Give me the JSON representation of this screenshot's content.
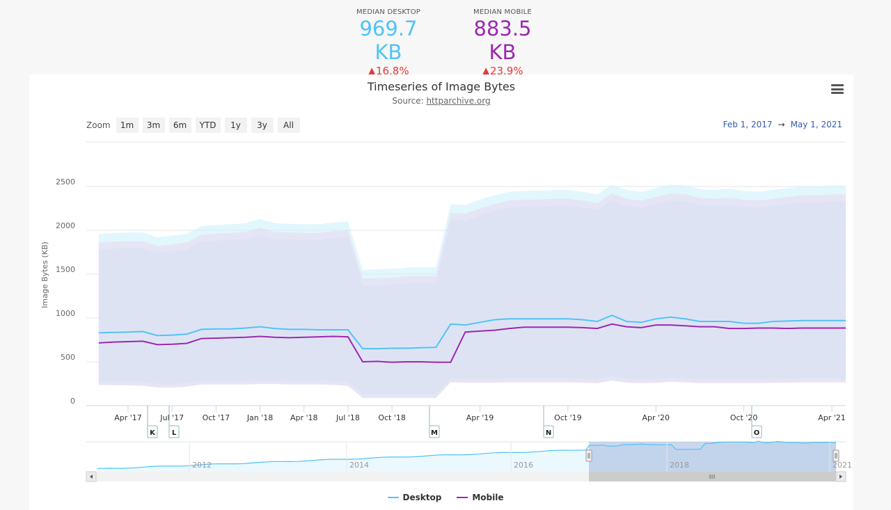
{
  "stats": {
    "desktop": {
      "label": "MEDIAN DESKTOP",
      "value": "969.7 KB",
      "change": "▲16.8%",
      "color": "#4fc3f7"
    },
    "mobile": {
      "label": "MEDIAN MOBILE",
      "value": "883.5 KB",
      "change": "▲23.9%",
      "color": "#9c27b0"
    }
  },
  "header": {
    "title": "Timeseries of Image Bytes",
    "source_prefix": "Source: ",
    "source_link": "httparchive.org"
  },
  "zoom": {
    "label": "Zoom",
    "buttons": [
      "1m",
      "3m",
      "6m",
      "YTD",
      "1y",
      "3y",
      "All"
    ]
  },
  "range": {
    "from": "Feb 1, 2017",
    "arrow": "→",
    "to": "May 1, 2021"
  },
  "legend": {
    "items": [
      {
        "label": "Desktop",
        "color": "#4fc3f7"
      },
      {
        "label": "Mobile",
        "color": "#9c27b0"
      }
    ]
  },
  "icons": {
    "menu": "hamburger-menu-icon"
  },
  "chart_data": {
    "type": "line",
    "title": "Timeseries of Image Bytes",
    "subtitle": "Source: httparchive.org",
    "xlabel": "",
    "ylabel": "Image Bytes (KB)",
    "ylim": [
      0,
      2500
    ],
    "yticks": [
      0,
      500,
      1000,
      1500,
      2000,
      2500
    ],
    "xticks": [
      "Apr '17",
      "Jul '17",
      "Oct '17",
      "Jan '18",
      "Apr '18",
      "Jul '18",
      "Oct '18",
      "Apr '19",
      "Oct '19",
      "Apr '20",
      "Oct '20",
      "Apr '21"
    ],
    "grid": true,
    "legend_position": "bottom",
    "x": [
      "Feb '17",
      "Mar '17",
      "Apr '17",
      "May '17",
      "Jun '17",
      "Jul '17",
      "Aug '17",
      "Sep '17",
      "Oct '17",
      "Nov '17",
      "Dec '17",
      "Jan '18",
      "Feb '18",
      "Mar '18",
      "Apr '18",
      "May '18",
      "Jun '18",
      "Jul '18",
      "Aug '18",
      "Sep '18",
      "Oct '18",
      "Nov '18",
      "Dec '18",
      "Jan '19",
      "Feb '19",
      "Mar '19",
      "Apr '19",
      "May '19",
      "Jun '19",
      "Jul '19",
      "Aug '19",
      "Sep '19",
      "Oct '19",
      "Nov '19",
      "Dec '19",
      "Jan '20",
      "Feb '20",
      "Mar '20",
      "Apr '20",
      "May '20",
      "Jun '20",
      "Jul '20",
      "Aug '20",
      "Sep '20",
      "Oct '20",
      "Nov '20",
      "Dec '20",
      "Jan '21",
      "Feb '21",
      "Mar '21",
      "Apr '21",
      "May '21"
    ],
    "series": [
      {
        "name": "Desktop",
        "color": "#4fc3f7",
        "values": [
          830,
          835,
          840,
          845,
          800,
          805,
          815,
          870,
          875,
          875,
          885,
          900,
          880,
          870,
          870,
          865,
          865,
          865,
          650,
          650,
          655,
          655,
          660,
          665,
          930,
          920,
          950,
          980,
          990,
          990,
          990,
          990,
          990,
          980,
          960,
          1030,
          960,
          950,
          990,
          1010,
          990,
          960,
          960,
          960,
          940,
          940,
          960,
          965,
          970,
          970,
          970,
          970
        ]
      },
      {
        "name": "Mobile",
        "color": "#9c27b0",
        "values": [
          715,
          725,
          730,
          735,
          695,
          700,
          710,
          765,
          770,
          775,
          780,
          790,
          780,
          775,
          780,
          785,
          790,
          785,
          500,
          505,
          495,
          500,
          500,
          495,
          495,
          840,
          850,
          860,
          880,
          895,
          895,
          895,
          895,
          890,
          880,
          930,
          900,
          890,
          920,
          920,
          910,
          900,
          900,
          880,
          880,
          885,
          885,
          880,
          885,
          885,
          885,
          885
        ]
      },
      {
        "name": "Desktop p90 band upper",
        "color": "#e1f5fe",
        "values": [
          1960,
          1970,
          1975,
          1975,
          1920,
          1940,
          1960,
          2050,
          2060,
          2070,
          2080,
          2130,
          2080,
          2075,
          2070,
          2070,
          2090,
          2100,
          1550,
          1555,
          1560,
          1575,
          1580,
          1580,
          2300,
          2290,
          2350,
          2400,
          2440,
          2450,
          2450,
          2460,
          2460,
          2440,
          2410,
          2520,
          2460,
          2440,
          2480,
          2520,
          2510,
          2470,
          2460,
          2470,
          2450,
          2440,
          2460,
          2480,
          2500,
          2500,
          2510,
          2510
        ]
      },
      {
        "name": "Band lower",
        "color": "#f3e5f5",
        "values": [
          260,
          255,
          255,
          250,
          230,
          230,
          240,
          265,
          265,
          265,
          265,
          270,
          270,
          265,
          265,
          265,
          260,
          250,
          110,
          110,
          110,
          110,
          110,
          110,
          290,
          285,
          285,
          285,
          290,
          290,
          290,
          290,
          290,
          285,
          280,
          310,
          285,
          280,
          285,
          295,
          290,
          280,
          280,
          280,
          280,
          280,
          285,
          285,
          290,
          290,
          290,
          290
        ]
      }
    ],
    "flags": [
      {
        "label": "K",
        "x": "May '17"
      },
      {
        "label": "L",
        "x": "Jun '17"
      },
      {
        "label": "M",
        "x": "Jul '18"
      },
      {
        "label": "N",
        "x": "Jan '19"
      },
      {
        "label": "O",
        "x": "Sep '20"
      }
    ],
    "navigator": {
      "xticks": [
        "2012",
        "2014",
        "2016",
        "2018",
        "2021"
      ],
      "selected_range": [
        "Feb 1, 2017",
        "May 1, 2021"
      ]
    }
  }
}
